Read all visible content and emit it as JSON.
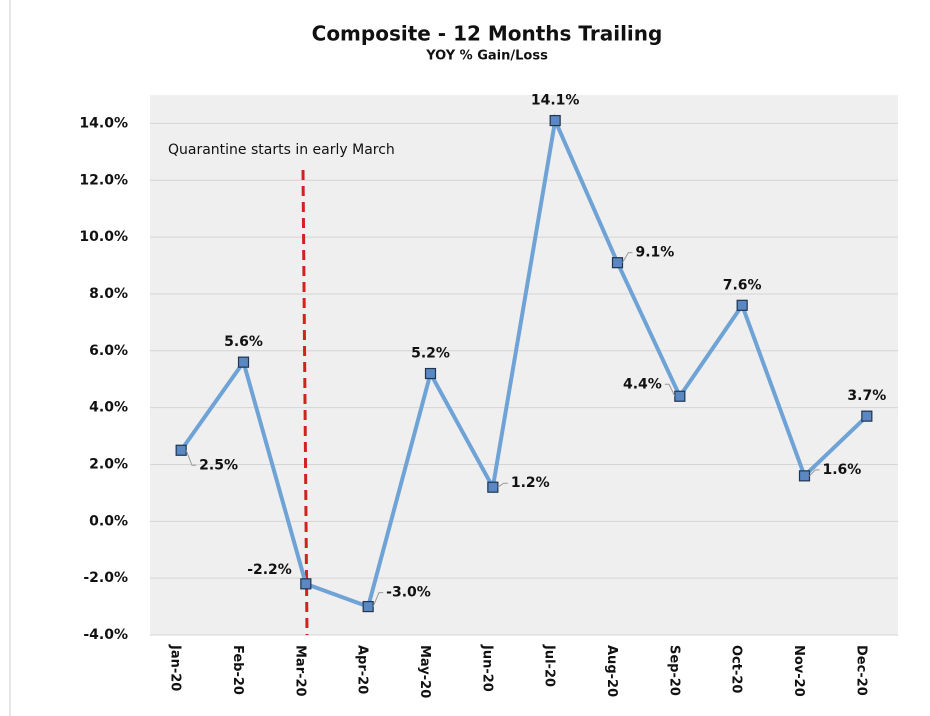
{
  "chart_data": {
    "type": "line",
    "title": "Composite - 12 Months Trailing",
    "subtitle": "YOY % Gain/Loss",
    "annotation": "Quarantine starts in early March",
    "categories": [
      "Jan-20",
      "Feb-20",
      "Mar-20",
      "Apr-20",
      "May-20",
      "Jun-20",
      "Jul-20",
      "Aug-20",
      "Sep-20",
      "Oct-20",
      "Nov-20",
      "Dec-20"
    ],
    "series": [
      {
        "name": "Composite",
        "color": "#6fa3d6",
        "values": [
          2.5,
          5.6,
          -2.2,
          -3.0,
          5.2,
          1.2,
          14.1,
          9.1,
          4.4,
          7.6,
          1.6,
          3.7
        ],
        "value_labels": [
          "2.5%",
          "5.6%",
          "-2.2%",
          "-3.0%",
          "5.2%",
          "1.2%",
          "14.1%",
          "9.1%",
          "4.4%",
          "7.6%",
          "1.6%",
          "3.7%"
        ]
      }
    ],
    "ylim": [
      -4,
      15
    ],
    "yticks": [
      {
        "value": -4,
        "label": "-4.0%"
      },
      {
        "value": -2,
        "label": "-2.0%"
      },
      {
        "value": 0,
        "label": "0.0%"
      },
      {
        "value": 2,
        "label": "2.0%"
      },
      {
        "value": 4,
        "label": "4.0%"
      },
      {
        "value": 6,
        "label": "6.0%"
      },
      {
        "value": 8,
        "label": "8.0%"
      },
      {
        "value": 10,
        "label": "10.0%"
      },
      {
        "value": 12,
        "label": "12.0%"
      },
      {
        "value": 14,
        "label": "14.0%"
      }
    ],
    "grid": true
  }
}
